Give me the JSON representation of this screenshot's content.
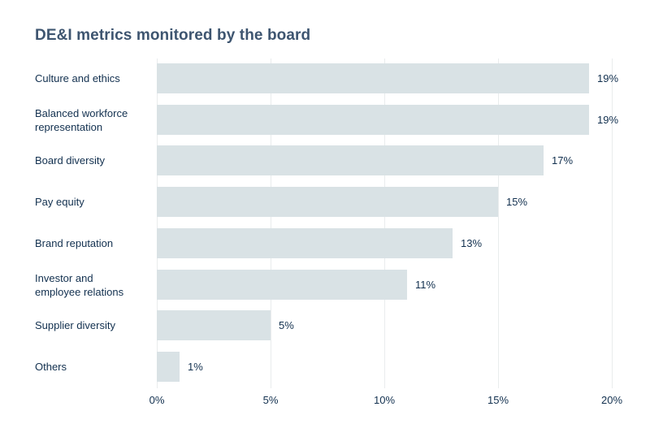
{
  "chart_data": {
    "type": "bar",
    "orientation": "horizontal",
    "title": "DE&I metrics monitored by the board",
    "categories": [
      "Culture and ethics",
      "Balanced workforce representation",
      "Board diversity",
      "Pay equity",
      "Brand reputation",
      "Investor and employee relations",
      "Supplier diversity",
      "Others"
    ],
    "values": [
      19,
      19,
      17,
      15,
      13,
      11,
      5,
      1
    ],
    "value_labels": [
      "19%",
      "19%",
      "17%",
      "15%",
      "13%",
      "11%",
      "5%",
      "1%"
    ],
    "xlabel": "",
    "ylabel": "",
    "xlim": [
      0,
      20
    ],
    "x_ticks": [
      0,
      5,
      10,
      15,
      20
    ],
    "x_tick_labels": [
      "0%",
      "5%",
      "10%",
      "15%",
      "20%"
    ],
    "grid": "vertical-only",
    "legend": "none",
    "colors": {
      "bar": "#d9e2e5",
      "title": "#3e5570",
      "text": "#12304f",
      "grid": "#e9eced",
      "background": "#ffffff"
    }
  }
}
